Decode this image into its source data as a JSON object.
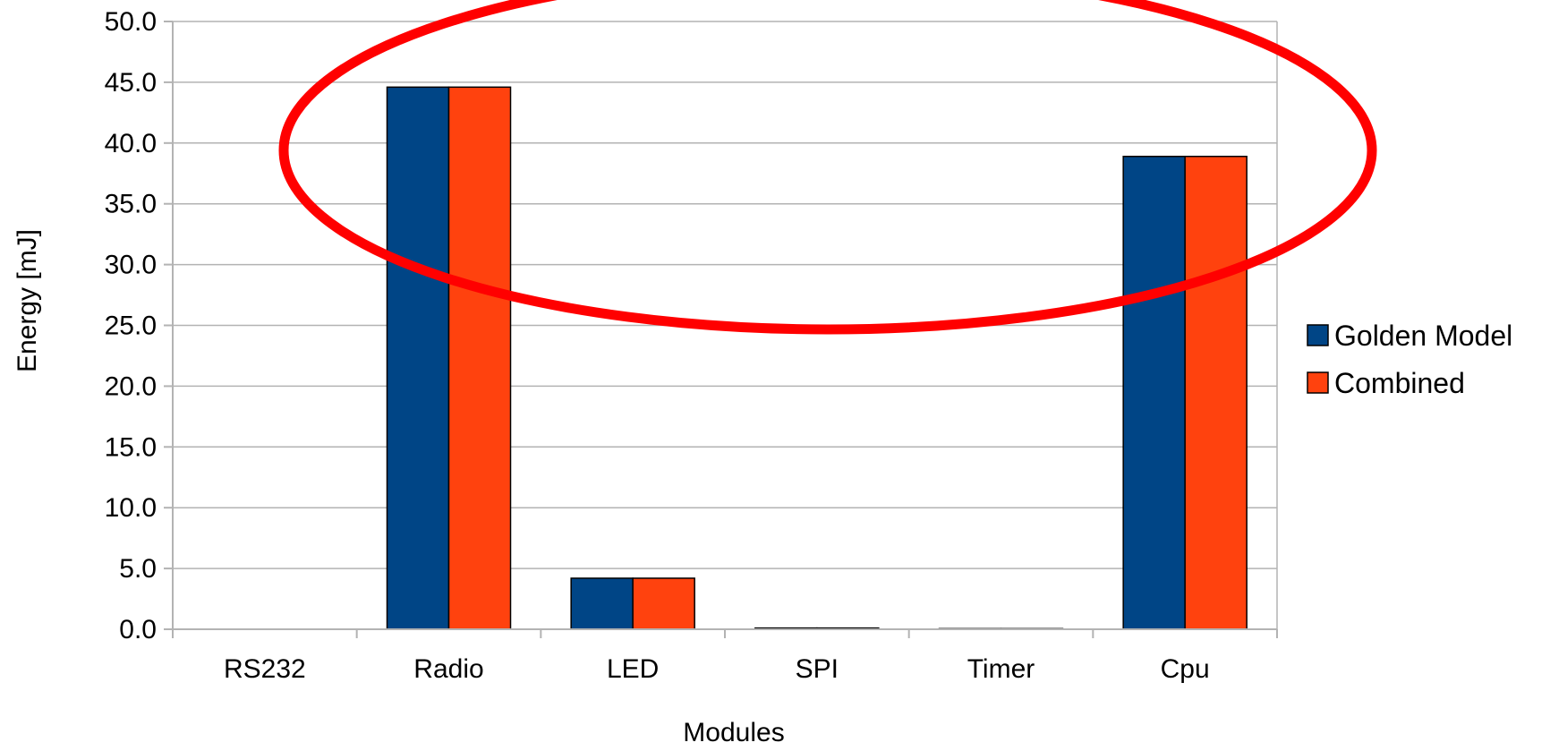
{
  "chart_data": {
    "type": "bar",
    "title": "",
    "xlabel": "Modules",
    "ylabel": "Energy [mJ]",
    "categories": [
      "RS232",
      "Radio",
      "LED",
      "SPI",
      "Timer",
      "Cpu"
    ],
    "series": [
      {
        "name": "Golden Model",
        "values": [
          0.0,
          44.6,
          4.2,
          0.1,
          0.05,
          38.9
        ],
        "color": "#004586"
      },
      {
        "name": "Combined",
        "values": [
          0.0,
          44.6,
          4.2,
          0.1,
          0.05,
          38.9
        ],
        "color": "#ff420e"
      }
    ],
    "ylim": [
      0,
      50
    ],
    "yticks": [
      "0.0",
      "5.0",
      "10.0",
      "15.0",
      "20.0",
      "25.0",
      "30.0",
      "35.0",
      "40.0",
      "45.0",
      "50.0"
    ],
    "grid": true,
    "legend_position": "right",
    "annotation": {
      "shape": "ellipse",
      "color": "#ff0000"
    }
  }
}
